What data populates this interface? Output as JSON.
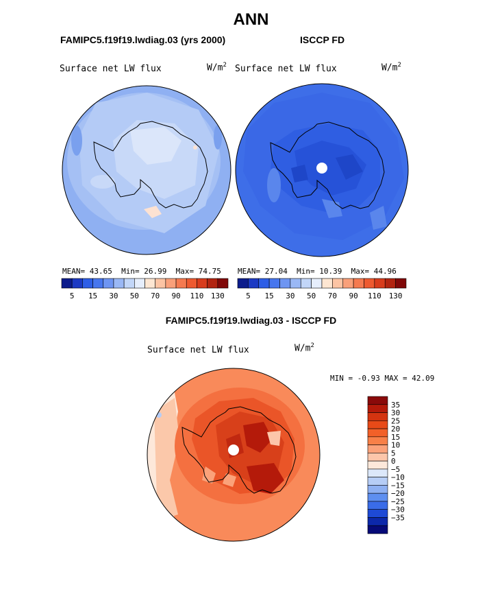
{
  "page": {
    "title": "ANN",
    "diff_title": "FAMIPC5.f19f19.lwdiag.03 - ISCCP FD"
  },
  "chart_data": [
    {
      "type": "polar_contour_map",
      "case_title": "FAMIPC5.f19f19.lwdiag.03 (yrs 2000)",
      "variable": "Surface net LW flux",
      "units_base": "W/m",
      "units_exp": "2",
      "stats": {
        "mean_label": "MEAN=",
        "mean": "43.65",
        "min_label": "Min=",
        "min": "26.99",
        "max_label": "Max=",
        "max": "74.75"
      },
      "levels": [
        5,
        10,
        15,
        20,
        30,
        40,
        50,
        60,
        70,
        80,
        90,
        100,
        110,
        120,
        130
      ],
      "tick_labels": [
        "5",
        "15",
        "30",
        "50",
        "70",
        "90",
        "110",
        "130"
      ],
      "colors": [
        "#0c1c8c",
        "#1c3ac4",
        "#2e5ee6",
        "#4776ee",
        "#6e95f2",
        "#9ab8f5",
        "#c2d6f8",
        "#e6eefc",
        "#fde6d2",
        "#fcc4a4",
        "#f9a07a",
        "#f57a50",
        "#ee5a30",
        "#d83c1c",
        "#b22410",
        "#800808"
      ]
    },
    {
      "type": "polar_contour_map",
      "case_title": "ISCCP FD",
      "variable": "Surface net LW flux",
      "units_base": "W/m",
      "units_exp": "2",
      "stats": {
        "mean_label": "MEAN=",
        "mean": "27.04",
        "min_label": "Min=",
        "min": "10.39",
        "max_label": "Max=",
        "max": "44.96"
      },
      "levels": [
        5,
        10,
        15,
        20,
        30,
        40,
        50,
        60,
        70,
        80,
        90,
        100,
        110,
        120,
        130
      ],
      "tick_labels": [
        "5",
        "15",
        "30",
        "50",
        "70",
        "90",
        "110",
        "130"
      ],
      "colors": [
        "#0c1c8c",
        "#1c3ac4",
        "#2e5ee6",
        "#4776ee",
        "#6e95f2",
        "#9ab8f5",
        "#c2d6f8",
        "#e6eefc",
        "#fde6d2",
        "#fcc4a4",
        "#f9a07a",
        "#f57a50",
        "#ee5a30",
        "#d83c1c",
        "#b22410",
        "#800808"
      ]
    },
    {
      "type": "polar_contour_map",
      "case_title": "FAMIPC5.f19f19.lwdiag.03 - ISCCP FD",
      "variable": "Surface net LW flux",
      "units_base": "W/m",
      "units_exp": "2",
      "stats": {
        "min_label": "MIN =",
        "min": "-0.93",
        "max_label": "MAX =",
        "max": "42.09"
      },
      "levels": [
        -35,
        -30,
        -25,
        -20,
        -15,
        -10,
        -5,
        0,
        5,
        10,
        15,
        20,
        25,
        30,
        35
      ],
      "tick_labels": [
        "35",
        "30",
        "25",
        "20",
        "15",
        "10",
        "5",
        "0",
        "−5",
        "−10",
        "−15",
        "−20",
        "−25",
        "−30",
        "−35"
      ],
      "colors": [
        "#8a0a0a",
        "#b41a0a",
        "#d43410",
        "#e84a18",
        "#f26028",
        "#f88048",
        "#fba27a",
        "#fcc6aa",
        "#fde8da",
        "#dce8fa",
        "#b6cdf6",
        "#8eb0f2",
        "#5e8ff0",
        "#3a6ce8",
        "#1e4ad6",
        "#0c28aa",
        "#060a78"
      ]
    }
  ]
}
